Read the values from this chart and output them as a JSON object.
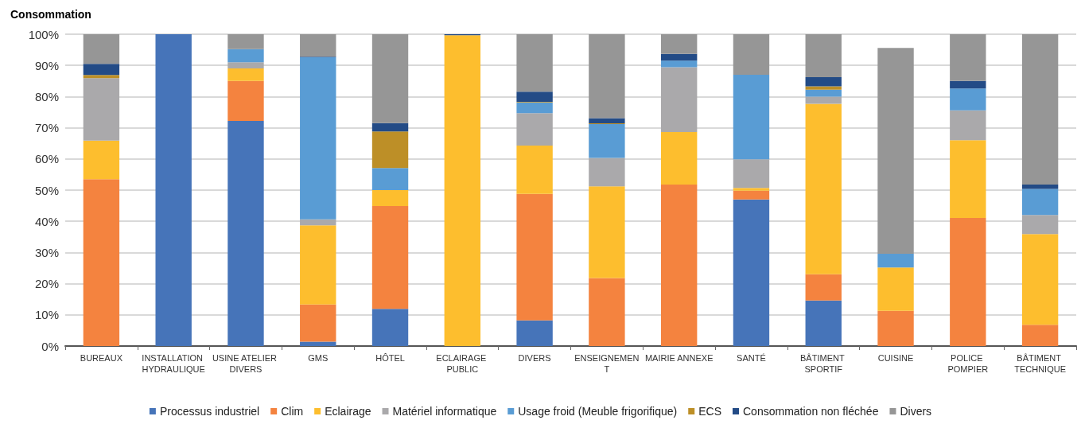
{
  "chart_data": {
    "type": "bar",
    "title": "Consommation",
    "stacked": true,
    "categories": [
      "BUREAUX",
      "INSTALLATION HYDRAULIQUE",
      "USINE ATELIER DIVERS",
      "GMS",
      "HÔTEL",
      "ECLAIRAGE PUBLIC",
      "DIVERS",
      "ENSEIGNEMENT",
      "MAIRIE ANNEXE",
      "SANTÉ",
      "BÂTIMENT SPORTIF",
      "CUISINE",
      "POLICE POMPIER",
      "BÂTIMENT TECHNIQUE"
    ],
    "series": [
      {
        "name": "Processus industriel",
        "color": "#4674b9",
        "values": [
          0,
          100,
          72.2,
          1.4,
          11.9,
          0,
          8.2,
          0,
          0,
          47,
          14.6,
          0,
          0,
          0
        ]
      },
      {
        "name": "Clim",
        "color": "#f4833f",
        "values": [
          53.5,
          0,
          12.8,
          11.9,
          33,
          0,
          40.6,
          21.8,
          51.8,
          2.8,
          8.4,
          11.3,
          41.1,
          6.8
        ]
      },
      {
        "name": "Eclairage",
        "color": "#fdbe2e",
        "values": [
          12.4,
          0,
          4,
          25.4,
          5.1,
          99.7,
          15.5,
          29.4,
          16.8,
          0.9,
          54.7,
          13.9,
          24.9,
          29.1
        ]
      },
      {
        "name": "Matériel informatique",
        "color": "#aaa9ab",
        "values": [
          20,
          0,
          2,
          1.9,
          0,
          0,
          10.4,
          9.1,
          20.8,
          9.2,
          2.3,
          null,
          9.6,
          6.1
        ]
      },
      {
        "name": "Usage froid (Meuble frigorifique)",
        "color": "#599cd4",
        "values": [
          0,
          0,
          4.2,
          52,
          7.1,
          0,
          3.4,
          10.9,
          2.1,
          27.1,
          2.2,
          4.4,
          7,
          8.4
        ]
      },
      {
        "name": "ECS",
        "color": "#bd8f27",
        "values": [
          1,
          0,
          0,
          0,
          11.7,
          0,
          0.2,
          0.2,
          0,
          0,
          1.1,
          0,
          0,
          0
        ]
      },
      {
        "name": "Consommation non fléchée",
        "color": "#234b86",
        "values": [
          3.6,
          0,
          0,
          0.2,
          2.7,
          0.3,
          3.3,
          1.7,
          2.2,
          0,
          2.9,
          0,
          2.4,
          1.4
        ]
      },
      {
        "name": "Divers",
        "color": "#969696",
        "values": [
          9.5,
          0,
          4.8,
          7.2,
          28.5,
          0,
          18.4,
          26.9,
          6.3,
          13,
          13.8,
          66,
          15,
          48.2
        ]
      }
    ],
    "ylim": [
      0,
      100
    ],
    "yticks": [
      {
        "value": 0,
        "label": "0%"
      },
      {
        "value": 10,
        "label": "10%"
      },
      {
        "value": 20,
        "label": "20%"
      },
      {
        "value": 30,
        "label": "30%"
      },
      {
        "value": 40,
        "label": "40%"
      },
      {
        "value": 50,
        "label": "50%"
      },
      {
        "value": 60,
        "label": "60%"
      },
      {
        "value": 70,
        "label": "70%"
      },
      {
        "value": 80,
        "label": "80%"
      },
      {
        "value": 90,
        "label": "90%"
      },
      {
        "value": 100,
        "label": "100%"
      }
    ],
    "grid": "y",
    "legend": "bottom"
  }
}
